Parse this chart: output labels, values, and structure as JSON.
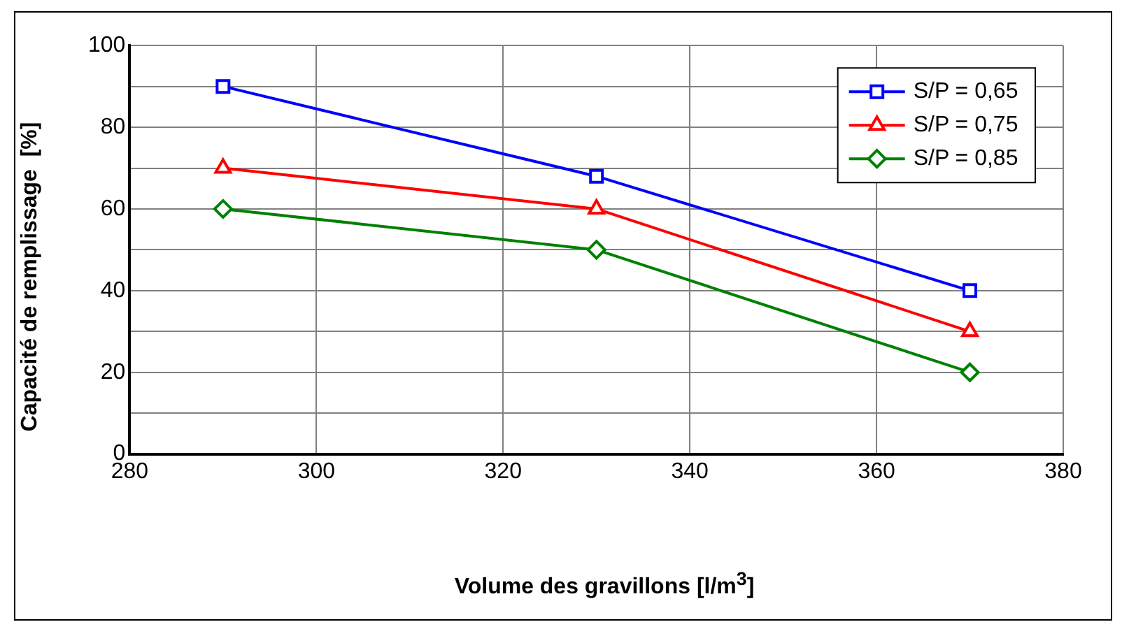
{
  "chart_data": {
    "type": "line",
    "xlabel": "Volume des gravillons [l/m$^{3}$]",
    "ylabel": "Capacité de remplissage  [%]",
    "x": [
      290,
      330,
      370
    ],
    "series": [
      {
        "name": "S/P = 0,65",
        "color": "#0000ff",
        "marker": "square",
        "values": [
          90,
          68,
          40
        ]
      },
      {
        "name": "S/P = 0,75",
        "color": "#ff0000",
        "marker": "triangle",
        "values": [
          70,
          60,
          30
        ]
      },
      {
        "name": "S/P = 0,85",
        "color": "#008000",
        "marker": "diamond",
        "values": [
          60,
          50,
          20
        ]
      }
    ],
    "xlim": [
      280,
      380
    ],
    "xticks": [
      280,
      300,
      320,
      340,
      360,
      380
    ],
    "ylim": [
      0,
      100
    ],
    "yticks": [
      0,
      {
        "value": 10,
        "label": null
      },
      20,
      {
        "value": 30,
        "label": null
      },
      40,
      {
        "value": 50,
        "label": null
      },
      60,
      {
        "value": 70,
        "label": null
      },
      80,
      {
        "value": 90,
        "label": null
      },
      100
    ],
    "grid": true,
    "legend": "top right",
    "line_style": "solid"
  }
}
